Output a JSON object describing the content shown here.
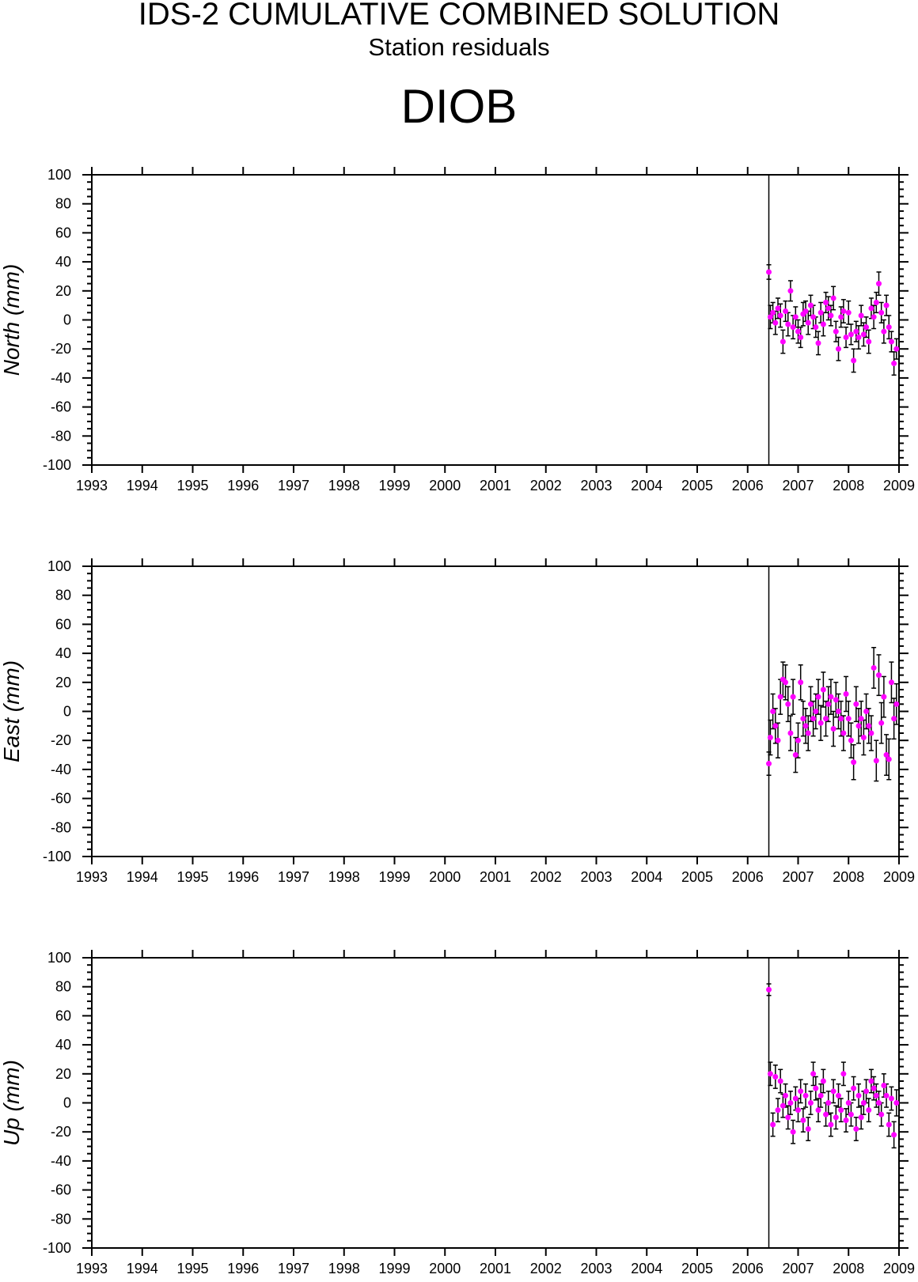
{
  "header": {
    "title": "IDS-2 CUMULATIVE COMBINED SOLUTION",
    "subtitle": "Station residuals",
    "station": "DIOB"
  },
  "colors": {
    "point": "#ff00ff",
    "errorbar": "#000000",
    "axis": "#000000"
  },
  "chart_data": [
    {
      "type": "scatter",
      "ylabel": "North (mm)",
      "xlim": [
        1993,
        2009
      ],
      "ylim": [
        -100,
        100
      ],
      "x_ticks": [
        "1993",
        "1994",
        "1995",
        "1996",
        "1997",
        "1998",
        "1999",
        "2000",
        "2001",
        "2002",
        "2003",
        "2004",
        "2005",
        "2006",
        "2007",
        "2008",
        "2009"
      ],
      "y_ticks": [
        "100",
        "80",
        "60",
        "40",
        "20",
        "0",
        "-20",
        "-40",
        "-60",
        "-80",
        "-100"
      ],
      "marker_line_x": 2006.42,
      "series": [
        {
          "x": [
            2006.42,
            2006.45,
            2006.5,
            2006.55,
            2006.6,
            2006.65,
            2006.7,
            2006.75,
            2006.8,
            2006.85,
            2006.9,
            2006.95,
            2007.0,
            2007.05,
            2007.1,
            2007.15,
            2007.2,
            2007.25,
            2007.3,
            2007.35,
            2007.4,
            2007.45,
            2007.5,
            2007.55,
            2007.6,
            2007.65,
            2007.7,
            2007.75,
            2007.8,
            2007.85,
            2007.9,
            2007.95,
            2008.0,
            2008.05,
            2008.1,
            2008.15,
            2008.2,
            2008.25,
            2008.3,
            2008.35,
            2008.4,
            2008.45,
            2008.5,
            2008.55,
            2008.6,
            2008.65,
            2008.7,
            2008.75,
            2008.8,
            2008.85,
            2008.9,
            2008.95
          ],
          "y": [
            33,
            2,
            5,
            -2,
            8,
            3,
            -15,
            6,
            -3,
            20,
            -5,
            2,
            -8,
            -12,
            4,
            6,
            -2,
            10,
            2,
            -5,
            -16,
            5,
            -3,
            12,
            8,
            3,
            15,
            -8,
            -20,
            2,
            6,
            -12,
            5,
            -10,
            -28,
            -8,
            -12,
            3,
            -10,
            -5,
            -15,
            8,
            2,
            12,
            25,
            5,
            -8,
            10,
            -5,
            -15,
            -30,
            -20
          ],
          "err": [
            5,
            8,
            7,
            8,
            7,
            8,
            8,
            7,
            8,
            7,
            8,
            7,
            8,
            7,
            8,
            7,
            8,
            7,
            8,
            7,
            8,
            7,
            8,
            7,
            8,
            7,
            8,
            7,
            8,
            7,
            8,
            7,
            8,
            7,
            8,
            7,
            8,
            7,
            8,
            7,
            8,
            7,
            8,
            7,
            8,
            7,
            8,
            7,
            8,
            7,
            8,
            7
          ]
        }
      ]
    },
    {
      "type": "scatter",
      "ylabel": "East (mm)",
      "xlim": [
        1993,
        2009
      ],
      "ylim": [
        -100,
        100
      ],
      "x_ticks": [
        "1993",
        "1994",
        "1995",
        "1996",
        "1997",
        "1998",
        "1999",
        "2000",
        "2001",
        "2002",
        "2003",
        "2004",
        "2005",
        "2006",
        "2007",
        "2008",
        "2009"
      ],
      "y_ticks": [
        "100",
        "80",
        "60",
        "40",
        "20",
        "0",
        "-20",
        "-40",
        "-60",
        "-80",
        "-100"
      ],
      "marker_line_x": 2006.42,
      "series": [
        {
          "x": [
            2006.42,
            2006.45,
            2006.5,
            2006.55,
            2006.6,
            2006.65,
            2006.7,
            2006.75,
            2006.8,
            2006.85,
            2006.9,
            2006.95,
            2007.0,
            2007.05,
            2007.1,
            2007.15,
            2007.2,
            2007.25,
            2007.3,
            2007.35,
            2007.4,
            2007.45,
            2007.5,
            2007.55,
            2007.6,
            2007.65,
            2007.7,
            2007.75,
            2007.8,
            2007.85,
            2007.9,
            2007.95,
            2008.0,
            2008.05,
            2008.1,
            2008.15,
            2008.2,
            2008.25,
            2008.3,
            2008.35,
            2008.4,
            2008.45,
            2008.5,
            2008.55,
            2008.6,
            2008.65,
            2008.7,
            2008.75,
            2008.8,
            2008.85,
            2008.9,
            2008.95
          ],
          "y": [
            -36,
            -18,
            0,
            -10,
            -20,
            10,
            22,
            20,
            5,
            -15,
            10,
            -30,
            -20,
            20,
            -5,
            -10,
            -15,
            5,
            -5,
            0,
            10,
            -8,
            15,
            -5,
            5,
            10,
            -12,
            8,
            0,
            -5,
            -15,
            12,
            -5,
            -20,
            -35,
            5,
            -10,
            -5,
            -18,
            0,
            -10,
            -15,
            30,
            -34,
            25,
            -8,
            10,
            -30,
            -33,
            20,
            -5,
            5
          ],
          "err": [
            8,
            12,
            12,
            12,
            12,
            12,
            12,
            12,
            12,
            12,
            12,
            12,
            12,
            12,
            12,
            12,
            12,
            12,
            12,
            12,
            12,
            12,
            12,
            12,
            12,
            12,
            12,
            12,
            12,
            12,
            12,
            12,
            12,
            12,
            12,
            12,
            12,
            12,
            12,
            12,
            12,
            12,
            14,
            14,
            14,
            14,
            14,
            14,
            14,
            14,
            14,
            14
          ]
        }
      ]
    },
    {
      "type": "scatter",
      "ylabel": "Up (mm)",
      "xlim": [
        1993,
        2009
      ],
      "ylim": [
        -100,
        100
      ],
      "x_ticks": [
        "1993",
        "1994",
        "1995",
        "1996",
        "1997",
        "1998",
        "1999",
        "2000",
        "2001",
        "2002",
        "2003",
        "2004",
        "2005",
        "2006",
        "2007",
        "2008",
        "2009"
      ],
      "y_ticks": [
        "100",
        "80",
        "60",
        "40",
        "20",
        "0",
        "-20",
        "-40",
        "-60",
        "-80",
        "-100"
      ],
      "marker_line_x": 2006.42,
      "series": [
        {
          "x": [
            2006.42,
            2006.45,
            2006.5,
            2006.55,
            2006.6,
            2006.65,
            2006.7,
            2006.75,
            2006.8,
            2006.85,
            2006.9,
            2006.95,
            2007.0,
            2007.05,
            2007.1,
            2007.15,
            2007.2,
            2007.25,
            2007.3,
            2007.35,
            2007.4,
            2007.45,
            2007.5,
            2007.55,
            2007.6,
            2007.65,
            2007.7,
            2007.75,
            2007.8,
            2007.85,
            2007.9,
            2007.95,
            2008.0,
            2008.05,
            2008.1,
            2008.15,
            2008.2,
            2008.25,
            2008.3,
            2008.35,
            2008.4,
            2008.45,
            2008.5,
            2008.55,
            2008.6,
            2008.65,
            2008.7,
            2008.75,
            2008.8,
            2008.85,
            2008.9,
            2008.95
          ],
          "y": [
            78,
            20,
            -15,
            18,
            -5,
            15,
            -2,
            5,
            -10,
            0,
            -20,
            3,
            -5,
            8,
            -12,
            5,
            -18,
            0,
            20,
            10,
            -5,
            5,
            15,
            -8,
            0,
            -15,
            8,
            -10,
            5,
            -5,
            20,
            -12,
            0,
            -8,
            10,
            -18,
            5,
            -10,
            0,
            8,
            -5,
            15,
            10,
            5,
            0,
            -8,
            12,
            5,
            -15,
            3,
            -22,
            0
          ],
          "err": [
            4,
            8,
            8,
            8,
            8,
            8,
            8,
            8,
            8,
            8,
            8,
            8,
            8,
            8,
            8,
            8,
            8,
            8,
            8,
            8,
            8,
            8,
            8,
            8,
            8,
            8,
            8,
            8,
            8,
            8,
            8,
            8,
            8,
            8,
            8,
            8,
            8,
            8,
            8,
            8,
            8,
            8,
            8,
            8,
            8,
            8,
            8,
            8,
            8,
            8,
            9,
            9
          ]
        }
      ]
    }
  ]
}
